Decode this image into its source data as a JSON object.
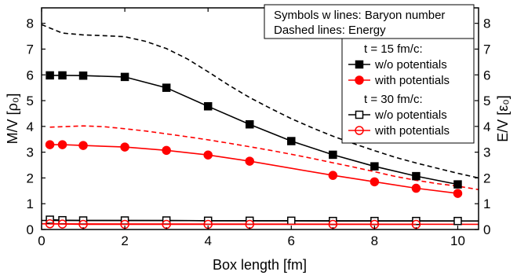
{
  "chart_data": {
    "type": "line",
    "xlabel": "Box length [fm]",
    "ylabel_left": "M/V [ρ₀]",
    "ylabel_right": "E/V [ε₀]",
    "xlim": [
      0,
      10.5
    ],
    "ylim": [
      0,
      8.6
    ],
    "xticks": [
      0,
      2,
      4,
      6,
      8,
      10
    ],
    "yticks": [
      0,
      1,
      2,
      3,
      4,
      5,
      6,
      7,
      8
    ],
    "grid": false,
    "annotation_box": {
      "lines": [
        "Symbols w lines: Baryon number",
        "Dashed lines: Energy"
      ]
    },
    "legend": {
      "placement": "top-right",
      "groups": [
        {
          "header": "t = 15 fm/c:",
          "entries": [
            {
              "label": "w/o potentials",
              "series": 0
            },
            {
              "label": "with potentials",
              "series": 1
            }
          ]
        },
        {
          "header": "t = 30 fm/c:",
          "entries": [
            {
              "label": "w/o potentials",
              "series": 2
            },
            {
              "label": "with potentials",
              "series": 3
            }
          ]
        }
      ]
    },
    "series": [
      {
        "color": "#000000",
        "marker": "square",
        "filled": true,
        "x": [
          0.2,
          0.5,
          1,
          2,
          3,
          4,
          5,
          6,
          7,
          8,
          9,
          10
        ],
        "y": [
          5.98,
          5.98,
          5.97,
          5.92,
          5.5,
          4.78,
          4.08,
          3.43,
          2.9,
          2.45,
          2.07,
          1.75
        ]
      },
      {
        "color": "#ff0000",
        "marker": "circle",
        "filled": true,
        "x": [
          0.2,
          0.5,
          1,
          2,
          3,
          4,
          5,
          7,
          8,
          9,
          10
        ],
        "y": [
          3.29,
          3.29,
          3.26,
          3.2,
          3.07,
          2.89,
          2.65,
          2.1,
          1.85,
          1.6,
          1.4
        ]
      },
      {
        "color": "#000000",
        "marker": "square",
        "filled": false,
        "x": [
          0.2,
          0.5,
          1,
          2,
          3,
          4,
          5,
          6,
          7,
          8,
          9,
          10
        ],
        "y": [
          0.38,
          0.36,
          0.35,
          0.35,
          0.35,
          0.34,
          0.34,
          0.34,
          0.33,
          0.33,
          0.33,
          0.33
        ]
      },
      {
        "color": "#ff0000",
        "marker": "circle",
        "filled": false,
        "x": [
          0.2,
          0.5,
          1,
          2,
          3,
          4,
          5,
          7,
          8,
          9
        ],
        "y": [
          0.22,
          0.21,
          0.2,
          0.2,
          0.2,
          0.2,
          0.2,
          0.2,
          0.2,
          0.2
        ]
      }
    ],
    "energy_series": [
      {
        "color": "#000000",
        "dash": true,
        "x": [
          0,
          0.5,
          1,
          1.5,
          2,
          2.5,
          3,
          3.5,
          4,
          4.5,
          5,
          5.5,
          6,
          6.5,
          7,
          7.5,
          8,
          8.5,
          9,
          9.5,
          10,
          10.5
        ],
        "y": [
          7.95,
          7.62,
          7.55,
          7.52,
          7.48,
          7.3,
          7.02,
          6.62,
          6.12,
          5.6,
          5.12,
          4.7,
          4.3,
          3.95,
          3.62,
          3.33,
          3.06,
          2.8,
          2.58,
          2.38,
          2.18,
          2.0
        ]
      },
      {
        "color": "#ff0000",
        "dash": true,
        "x": [
          0.2,
          0.5,
          1,
          1.5,
          2,
          2.5,
          3,
          3.5,
          4,
          4.5,
          5,
          5.5,
          6,
          6.5,
          7,
          7.5,
          8,
          8.5,
          9,
          9.5,
          10,
          10.5
        ],
        "y": [
          3.97,
          3.99,
          4.02,
          3.99,
          3.91,
          3.82,
          3.71,
          3.6,
          3.48,
          3.35,
          3.21,
          3.07,
          2.92,
          2.76,
          2.59,
          2.42,
          2.24,
          2.06,
          1.91,
          1.78,
          1.68,
          1.55
        ]
      },
      {
        "color": "#000000",
        "dash": false,
        "x": [
          0,
          10.5
        ],
        "y": [
          0.35,
          0.33
        ]
      },
      {
        "color": "#ff0000",
        "dash": false,
        "x": [
          0,
          10.5
        ],
        "y": [
          0.22,
          0.2
        ]
      }
    ]
  }
}
